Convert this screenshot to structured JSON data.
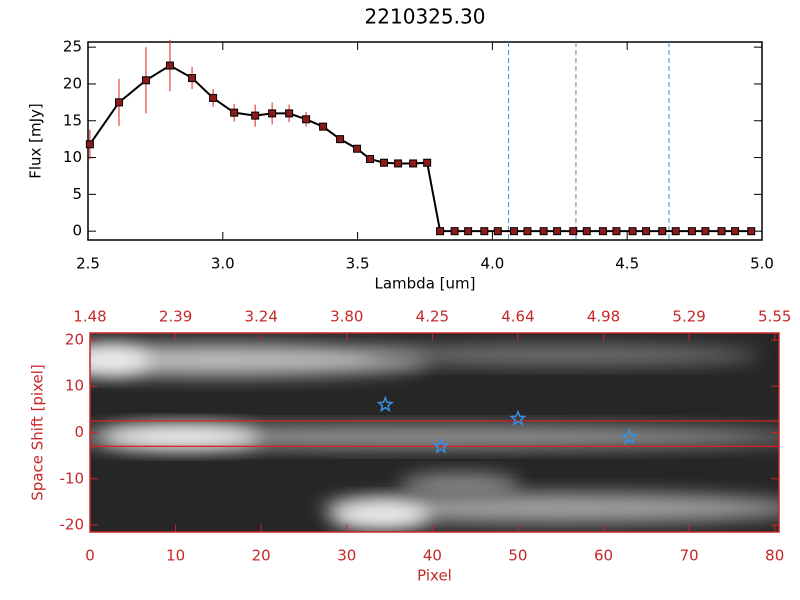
{
  "chart_data": [
    {
      "type": "line",
      "title": "2210325.30",
      "xlabel": "Lambda [um]",
      "ylabel": "Flux [mJy]",
      "x": [
        2.507,
        2.615,
        2.715,
        2.804,
        2.886,
        2.964,
        3.042,
        3.12,
        3.183,
        3.246,
        3.309,
        3.372,
        3.435,
        3.498,
        3.546,
        3.598,
        3.65,
        3.706,
        3.758,
        3.806,
        3.86,
        3.91,
        3.97,
        4.02,
        4.08,
        4.13,
        4.19,
        4.24,
        4.3,
        4.35,
        4.41,
        4.46,
        4.52,
        4.57,
        4.63,
        4.68,
        4.74,
        4.79,
        4.85,
        4.9,
        4.96
      ],
      "values": [
        11.8,
        17.5,
        20.5,
        22.5,
        20.8,
        18.1,
        16.1,
        15.7,
        16.0,
        16.0,
        15.2,
        14.2,
        12.5,
        11.2,
        9.8,
        9.3,
        9.2,
        9.2,
        9.3,
        0,
        0,
        0,
        0,
        0,
        0,
        0,
        0,
        0,
        0,
        0,
        0,
        0,
        0,
        0,
        0,
        0,
        0,
        0,
        0,
        0,
        0
      ],
      "errors": [
        2,
        3.2,
        4.5,
        3.5,
        1.5,
        1.2,
        1.2,
        1.5,
        1.5,
        1.2,
        1.0,
        0,
        0,
        0,
        0,
        0,
        0,
        0,
        0,
        0,
        0,
        0,
        0,
        0,
        0,
        0,
        0,
        0,
        0,
        0,
        0,
        0,
        0,
        0,
        0,
        0,
        0,
        0,
        0,
        0,
        0
      ],
      "color": "#000000",
      "marker_color": "#8b1a1a",
      "error_color": "#e02020",
      "vlines": [
        4.06,
        4.31,
        4.655
      ],
      "vline_color": "#3a8fd0",
      "xlim": [
        2.5,
        5.0
      ],
      "ylim": [
        -1.2,
        25.7
      ],
      "xticks": [
        2.5,
        {
          "value": 3,
          "label": "3.0"
        },
        3.5,
        {
          "value": 4,
          "label": "4.0"
        },
        4.5,
        {
          "value": 5,
          "label": "5.0"
        }
      ],
      "yticks": [
        0,
        5,
        10,
        15,
        20,
        25
      ]
    },
    {
      "type": "scatter",
      "xlabel": "Pixel",
      "ylabel": "Space Shift [pixel]",
      "top_tick_labels": [
        "1.48",
        "2.39",
        "3.24",
        "3.80",
        "4.25",
        "4.64",
        "4.98",
        "5.29",
        "5.55"
      ],
      "x": [
        34.5,
        41,
        50,
        63
      ],
      "values": [
        6,
        -3,
        3,
        -1
      ],
      "color": "#3a8fe0",
      "hlines": [
        2.5,
        -3
      ],
      "hline_color": "#e02020",
      "axis_color": "#c62828",
      "xlim": [
        0,
        80.5
      ],
      "ylim": [
        -21.5,
        21.5
      ],
      "xticks": [
        0,
        10,
        20,
        30,
        40,
        50,
        60,
        70,
        80
      ],
      "yticks": [
        -20,
        -10,
        0,
        10,
        20
      ]
    }
  ]
}
